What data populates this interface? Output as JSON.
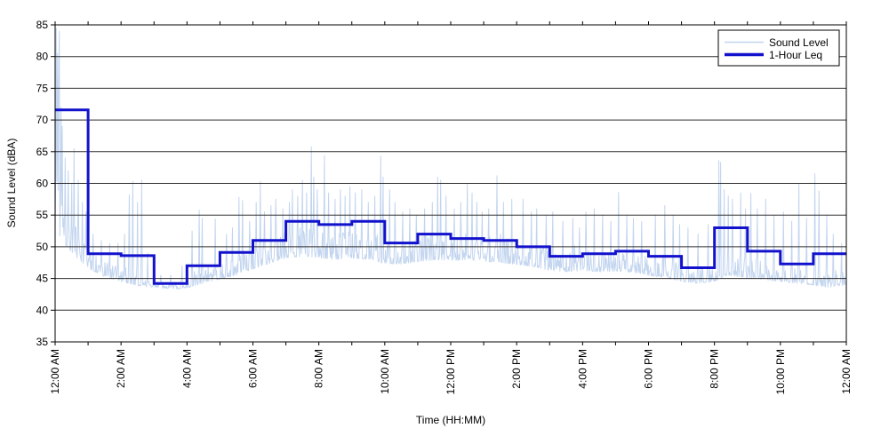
{
  "chart_data": {
    "type": "line",
    "title": "",
    "xlabel": "Time (HH:MM)",
    "ylabel": "Sound Level (dBA)",
    "ylim": [
      35,
      85
    ],
    "y_ticks": [
      35,
      40,
      45,
      50,
      55,
      60,
      65,
      70,
      75,
      80,
      85
    ],
    "x_range_hours": [
      0,
      24
    ],
    "x_tick_labels": [
      "12:00 AM",
      "2:00 AM",
      "4:00 AM",
      "6:00 AM",
      "8:00 AM",
      "10:00 AM",
      "12:00 PM",
      "2:00 PM",
      "4:00 PM",
      "6:00 PM",
      "8:00 PM",
      "10:00 PM",
      "12:00 AM"
    ],
    "x_label_every_hours": 2,
    "x_minor_tick_every_hours": 1,
    "grid": "horizontal",
    "grid_color": "#2b2b2b",
    "plot_border_color": "#000000",
    "background_color": "#ffffff",
    "legend_position": "top-right",
    "series": [
      {
        "name": "Sound Level",
        "type": "noisy-line",
        "color": "#c3d5ef",
        "line_width": 1,
        "baseline_keyframes_hour_base_jitter": [
          [
            0,
            54,
            2.6
          ],
          [
            0.3,
            51.5,
            2.2
          ],
          [
            0.6,
            49.5,
            1.8
          ],
          [
            1,
            47.3,
            1.3
          ],
          [
            1.5,
            45.8,
            1.1
          ],
          [
            2,
            45,
            1
          ],
          [
            2.5,
            44.3,
            0.8
          ],
          [
            3,
            43.8,
            0.5
          ],
          [
            3.7,
            43.6,
            0.5
          ],
          [
            4.1,
            44,
            0.8
          ],
          [
            4.5,
            44.8,
            1
          ],
          [
            5,
            45.5,
            1.2
          ],
          [
            5.5,
            46.2,
            1.3
          ],
          [
            6,
            47.3,
            1.6
          ],
          [
            6.5,
            48.3,
            1.8
          ],
          [
            7,
            49.2,
            2
          ],
          [
            7.5,
            49.6,
            2.1
          ],
          [
            8,
            49.3,
            2.1
          ],
          [
            8.5,
            49,
            2
          ],
          [
            9,
            49.2,
            2
          ],
          [
            9.5,
            49,
            2
          ],
          [
            10,
            48.3,
            1.9
          ],
          [
            10.5,
            48.2,
            1.8
          ],
          [
            11,
            48.6,
            1.9
          ],
          [
            11.5,
            48.9,
            1.9
          ],
          [
            12,
            48.8,
            1.9
          ],
          [
            12.5,
            48.9,
            1.9
          ],
          [
            13,
            48.6,
            1.8
          ],
          [
            13.5,
            48.4,
            1.8
          ],
          [
            14,
            48.1,
            1.8
          ],
          [
            14.5,
            47.7,
            1.6
          ],
          [
            15,
            47,
            1.5
          ],
          [
            15.5,
            46.8,
            1.5
          ],
          [
            16,
            47,
            1.5
          ],
          [
            16.5,
            46.8,
            1.5
          ],
          [
            17,
            46.9,
            1.5
          ],
          [
            17.5,
            46.7,
            1.4
          ],
          [
            18,
            46.2,
            1.4
          ],
          [
            18.5,
            45.8,
            1.3
          ],
          [
            19,
            45.1,
            1.1
          ],
          [
            19.5,
            44.8,
            1.1
          ],
          [
            20,
            45.3,
            1.5
          ],
          [
            20.4,
            46.3,
            1.6
          ],
          [
            21,
            45.8,
            1.4
          ],
          [
            21.5,
            45.5,
            1.3
          ],
          [
            22,
            45.1,
            1.2
          ],
          [
            22.5,
            44.8,
            1.1
          ],
          [
            23,
            44.5,
            1.1
          ],
          [
            23.5,
            44.1,
            1
          ],
          [
            24,
            44.5,
            1
          ]
        ],
        "spikes_hour_peak": [
          [
            0.03,
            84.5
          ],
          [
            0.07,
            80.5
          ],
          [
            0.1,
            76
          ],
          [
            0.13,
            84
          ],
          [
            0.18,
            72
          ],
          [
            0.22,
            69
          ],
          [
            0.3,
            64
          ],
          [
            0.4,
            62
          ],
          [
            0.5,
            60
          ],
          [
            0.58,
            65.5
          ],
          [
            0.7,
            60.5
          ],
          [
            0.82,
            57
          ],
          [
            0.93,
            55.5
          ],
          [
            1.15,
            52
          ],
          [
            1.4,
            51
          ],
          [
            1.65,
            50.5
          ],
          [
            1.9,
            50.5
          ],
          [
            2.1,
            52
          ],
          [
            2.25,
            58.2
          ],
          [
            2.35,
            60.3
          ],
          [
            2.5,
            57
          ],
          [
            2.62,
            60.5
          ],
          [
            2.8,
            49
          ],
          [
            3.2,
            45.5
          ],
          [
            3.5,
            45.5
          ],
          [
            3.85,
            47
          ],
          [
            4.15,
            52.5
          ],
          [
            4.38,
            55.8
          ],
          [
            4.47,
            54.5
          ],
          [
            4.85,
            54.4
          ],
          [
            5.2,
            52
          ],
          [
            5.38,
            53
          ],
          [
            5.58,
            57.8
          ],
          [
            5.68,
            57.3
          ],
          [
            5.9,
            54
          ],
          [
            6.1,
            57
          ],
          [
            6.22,
            60.3
          ],
          [
            6.35,
            55.5
          ],
          [
            6.55,
            56.5
          ],
          [
            6.7,
            57.5
          ],
          [
            6.9,
            56
          ],
          [
            7.1,
            57
          ],
          [
            7.2,
            59
          ],
          [
            7.35,
            58
          ],
          [
            7.5,
            60.5
          ],
          [
            7.62,
            58.5
          ],
          [
            7.78,
            65.8
          ],
          [
            7.85,
            61
          ],
          [
            7.95,
            59
          ],
          [
            8.17,
            64.4
          ],
          [
            8.3,
            58.5
          ],
          [
            8.5,
            57.5
          ],
          [
            8.65,
            59
          ],
          [
            8.8,
            58
          ],
          [
            8.95,
            59.5
          ],
          [
            9.1,
            58.5
          ],
          [
            9.3,
            59
          ],
          [
            9.5,
            57
          ],
          [
            9.7,
            58
          ],
          [
            9.87,
            64.3
          ],
          [
            9.95,
            61
          ],
          [
            10.15,
            59
          ],
          [
            10.3,
            57
          ],
          [
            10.55,
            55.5
          ],
          [
            10.75,
            56
          ],
          [
            10.95,
            55
          ],
          [
            11.2,
            56
          ],
          [
            11.45,
            57
          ],
          [
            11.6,
            61
          ],
          [
            11.7,
            60.5
          ],
          [
            11.85,
            58
          ],
          [
            12.1,
            56
          ],
          [
            12.3,
            57
          ],
          [
            12.5,
            60
          ],
          [
            12.65,
            58.5
          ],
          [
            12.8,
            57
          ],
          [
            12.95,
            55.5
          ],
          [
            13.15,
            56
          ],
          [
            13.4,
            61.2
          ],
          [
            13.6,
            57
          ],
          [
            13.85,
            57.5
          ],
          [
            14.2,
            57.5
          ],
          [
            14.45,
            55.5
          ],
          [
            14.6,
            56
          ],
          [
            14.9,
            55
          ],
          [
            15.1,
            55.5
          ],
          [
            15.4,
            54
          ],
          [
            15.7,
            54.5
          ],
          [
            15.9,
            53
          ],
          [
            16.1,
            55.5
          ],
          [
            16.35,
            56
          ],
          [
            16.6,
            55
          ],
          [
            16.85,
            54
          ],
          [
            17.1,
            58.6
          ],
          [
            17.35,
            55
          ],
          [
            17.55,
            54.5
          ],
          [
            17.8,
            54
          ],
          [
            18.2,
            55
          ],
          [
            18.5,
            56.5
          ],
          [
            18.75,
            55
          ],
          [
            18.95,
            53.5
          ],
          [
            19.2,
            53
          ],
          [
            19.5,
            52
          ],
          [
            19.8,
            53.5
          ],
          [
            20.13,
            63.6
          ],
          [
            20.18,
            63.3
          ],
          [
            20.3,
            59
          ],
          [
            20.42,
            58
          ],
          [
            20.55,
            57.5
          ],
          [
            20.8,
            58.5
          ],
          [
            20.95,
            56
          ],
          [
            21.1,
            58.4
          ],
          [
            21.3,
            56
          ],
          [
            21.55,
            57.5
          ],
          [
            21.8,
            55
          ],
          [
            22.1,
            55.5
          ],
          [
            22.35,
            54
          ],
          [
            22.56,
            60
          ],
          [
            22.8,
            54.5
          ],
          [
            23.05,
            61.5
          ],
          [
            23.18,
            58.8
          ],
          [
            23.4,
            55
          ],
          [
            23.6,
            52
          ],
          [
            23.85,
            50.5
          ]
        ]
      },
      {
        "name": "1-Hour Leq",
        "type": "step",
        "color": "#1212cc",
        "line_width": 3,
        "hourly_leq": [
          71.6,
          48.9,
          48.6,
          44.2,
          47.0,
          49.1,
          51.0,
          54.0,
          53.5,
          54.0,
          50.6,
          52.0,
          51.3,
          51.0,
          50.0,
          48.5,
          48.9,
          49.3,
          48.5,
          46.7,
          53.0,
          49.3,
          47.3,
          48.9
        ]
      }
    ]
  }
}
